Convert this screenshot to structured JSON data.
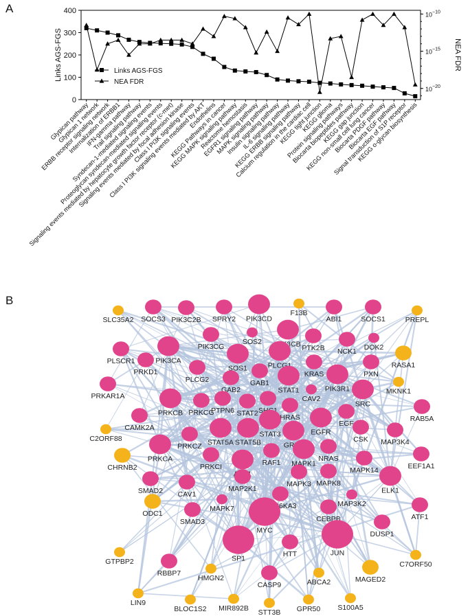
{
  "panel_a_label": "A",
  "panel_b_label": "B",
  "chart_data": [
    {
      "type": "line",
      "x": [
        "Glypican pathway",
        "Glypican 1 network",
        "ERBB receptor signaling network",
        "Internalization of ERBB1",
        "IFN-gamma pathway",
        "Trail signaling pathway",
        "Syndecan-1-mediated signaling events",
        "Proteoglycan syndecan-mediated signaling events",
        "Signaling events mediated by hepatocyte growth factor receptor (c-met)",
        "Signaling events mediated by focal adhesion kinase",
        "Class I PI3K signaling events",
        "Class I PI3K signaling events mediated by AKT",
        "Endothelins",
        "KEGG Pathways in cancer",
        "KEGG MAPK signaling pathway",
        "Reactome hemostasis",
        "EGFR1 signaling pathway",
        "MAPK signaling pathway",
        "Insulin signaling pathway",
        "IL-6 signaling pathway",
        "KEGG ERBB signaling pathway",
        "Calcium regulation in the cardiac cell",
        "KEGG tight junction",
        "KEGG glioma",
        "Protein signaling pathways",
        "Biocarta biopeptides pathway",
        "KEGG gap junction",
        "KEGG non-small cell lung cancer",
        "Biocarta PDGF pathway",
        "Biocarta EGF pathway",
        "Signal transduction of S1P receptor",
        "KEGG o-glycan biosynthesis"
      ],
      "series": [
        {
          "name": "Links AGS-FGS",
          "axis": "left",
          "marker": "square",
          "values": [
            320,
            310,
            300,
            288,
            268,
            258,
            254,
            252,
            250,
            247,
            236,
            205,
            183,
            146,
            130,
            126,
            123,
            110,
            90,
            85,
            82,
            80,
            75,
            72,
            68,
            65,
            62,
            58,
            55,
            52,
            28,
            15
          ]
        },
        {
          "name": "NEA FDR",
          "axis": "right",
          "marker": "triangle",
          "values": [
            -11.5,
            -17.5,
            -14.0,
            -13.5,
            -15.5,
            -14.0,
            -14.0,
            -13.5,
            -13.5,
            -13.5,
            -14.0,
            -12.0,
            -13.0,
            -10.3,
            -10.6,
            -11.8,
            -15.2,
            -12.4,
            -15.0,
            -10.5,
            -11.4,
            -10.0,
            -20.5,
            -13.3,
            -13.0,
            -18.5,
            -10.8,
            -10.0,
            -11.5,
            -10.0,
            -11.8,
            -19.5
          ]
        }
      ],
      "ylabel": "Links AGS-FGS",
      "ylabel_right": "NEA FDR",
      "ylim": [
        0,
        400
      ],
      "yticks": [
        "0",
        "100",
        "200",
        "300",
        "400"
      ],
      "ylim_right_log10": [
        -21.5,
        -9.5
      ],
      "yticks_right": [
        {
          "exp": -10,
          "label": "10",
          "sup": "−10"
        },
        {
          "exp": -15,
          "label": "10",
          "sup": "−15"
        },
        {
          "exp": -20,
          "label": "10",
          "sup": "−20"
        }
      ],
      "legend_position": "left-middle",
      "grid": false
    },
    {
      "type": "network",
      "edge_color": "#b4c4de",
      "colors": {
        "pink": "#e2448c",
        "orange": "#f5b31b",
        "label": "#222222"
      },
      "nodes": [
        {
          "id": "SLC35A2",
          "color": "orange",
          "size": "small"
        },
        {
          "id": "SOCS3",
          "color": "pink",
          "size": "medium"
        },
        {
          "id": "PIK3C2B",
          "color": "pink",
          "size": "medium"
        },
        {
          "id": "SPRY2",
          "color": "pink",
          "size": "medium"
        },
        {
          "id": "PIK3CD",
          "color": "pink",
          "size": "large"
        },
        {
          "id": "F13B",
          "color": "orange",
          "size": "small"
        },
        {
          "id": "ABI1",
          "color": "pink",
          "size": "medium"
        },
        {
          "id": "SOCS1",
          "color": "pink",
          "size": "medium"
        },
        {
          "id": "PREPL",
          "color": "orange",
          "size": "small"
        },
        {
          "id": "PIK3CG",
          "color": "pink",
          "size": "medium"
        },
        {
          "id": "SOS2",
          "color": "pink",
          "size": "small"
        },
        {
          "id": "PIK3CB",
          "color": "pink",
          "size": "large"
        },
        {
          "id": "PLSCR1",
          "color": "pink",
          "size": "medium"
        },
        {
          "id": "PIK3CA",
          "color": "pink",
          "size": "large"
        },
        {
          "id": "SOS1",
          "color": "pink",
          "size": "large"
        },
        {
          "id": "PTK2B",
          "color": "pink",
          "size": "medium"
        },
        {
          "id": "NCK1",
          "color": "pink",
          "size": "medium"
        },
        {
          "id": "DOK2",
          "color": "pink",
          "size": "small"
        },
        {
          "id": "RASA1",
          "color": "orange",
          "size": "medium"
        },
        {
          "id": "PRKD1",
          "color": "pink",
          "size": "medium"
        },
        {
          "id": "PLCG2",
          "color": "pink",
          "size": "medium"
        },
        {
          "id": "GAB1",
          "color": "pink",
          "size": "medium"
        },
        {
          "id": "PLCG1",
          "color": "pink",
          "size": "large"
        },
        {
          "id": "KRAS",
          "color": "pink",
          "size": "medium"
        },
        {
          "id": "PXN",
          "color": "pink",
          "size": "medium"
        },
        {
          "id": "MKNK1",
          "color": "orange",
          "size": "small"
        },
        {
          "id": "PRKAR1A",
          "color": "pink",
          "size": "medium"
        },
        {
          "id": "GAB2",
          "color": "pink",
          "size": "medium"
        },
        {
          "id": "STAT1",
          "color": "pink",
          "size": "large"
        },
        {
          "id": "PIK3R1",
          "color": "pink",
          "size": "large"
        },
        {
          "id": "CAV2",
          "color": "pink",
          "size": "small"
        },
        {
          "id": "SRC",
          "color": "pink",
          "size": "large"
        },
        {
          "id": "PRKCB",
          "color": "pink",
          "size": "large"
        },
        {
          "id": "PRKCG",
          "color": "pink",
          "size": "medium"
        },
        {
          "id": "PTPN6",
          "color": "pink",
          "size": "medium"
        },
        {
          "id": "STAT2",
          "color": "pink",
          "size": "medium"
        },
        {
          "id": "SHC1",
          "color": "pink",
          "size": "medium"
        },
        {
          "id": "HRAS",
          "color": "pink",
          "size": "medium"
        },
        {
          "id": "EGF",
          "color": "pink",
          "size": "medium"
        },
        {
          "id": "RAB5A",
          "color": "pink",
          "size": "medium"
        },
        {
          "id": "CAMK2A",
          "color": "pink",
          "size": "medium"
        },
        {
          "id": "C2ORF88",
          "color": "orange",
          "size": "small"
        },
        {
          "id": "PRKCZ",
          "color": "pink",
          "size": "medium"
        },
        {
          "id": "STAT5A",
          "color": "pink",
          "size": "large"
        },
        {
          "id": "STAT5B",
          "color": "pink",
          "size": "large"
        },
        {
          "id": "STAT3",
          "color": "pink",
          "size": "large"
        },
        {
          "id": "GRB2",
          "color": "pink",
          "size": "large"
        },
        {
          "id": "EGFR",
          "color": "pink",
          "size": "large"
        },
        {
          "id": "CSK",
          "color": "pink",
          "size": "medium"
        },
        {
          "id": "MAP3K4",
          "color": "pink",
          "size": "medium"
        },
        {
          "id": "CHRNB2",
          "color": "orange",
          "size": "medium"
        },
        {
          "id": "PRKCA",
          "color": "pink",
          "size": "large"
        },
        {
          "id": "PRKCI",
          "color": "pink",
          "size": "medium"
        },
        {
          "id": "AKT1",
          "color": "pink",
          "size": "large"
        },
        {
          "id": "RAF1",
          "color": "pink",
          "size": "medium"
        },
        {
          "id": "MAPK1",
          "color": "pink",
          "size": "large"
        },
        {
          "id": "NRAS",
          "color": "pink",
          "size": "medium"
        },
        {
          "id": "MAPK14",
          "color": "pink",
          "size": "medium"
        },
        {
          "id": "EEF1A1",
          "color": "pink",
          "size": "medium"
        },
        {
          "id": "SMAD2",
          "color": "pink",
          "size": "medium"
        },
        {
          "id": "CAV1",
          "color": "pink",
          "size": "medium"
        },
        {
          "id": "MAP2K1",
          "color": "pink",
          "size": "medium"
        },
        {
          "id": "MAPK3",
          "color": "pink",
          "size": "medium"
        },
        {
          "id": "MAPK8",
          "color": "pink",
          "size": "medium"
        },
        {
          "id": "ELK1",
          "color": "pink",
          "size": "large"
        },
        {
          "id": "RPS6KA3",
          "color": "pink",
          "size": "medium"
        },
        {
          "id": "MAPK7",
          "color": "pink",
          "size": "small"
        },
        {
          "id": "MAP3K2",
          "color": "pink",
          "size": "small"
        },
        {
          "id": "ATF1",
          "color": "pink",
          "size": "medium"
        },
        {
          "id": "ODC1",
          "color": "orange",
          "size": "medium"
        },
        {
          "id": "SMAD3",
          "color": "pink",
          "size": "medium"
        },
        {
          "id": "MYC",
          "color": "pink",
          "size": "xlarge"
        },
        {
          "id": "CEBPB",
          "color": "pink",
          "size": "medium"
        },
        {
          "id": "DUSP1",
          "color": "pink",
          "size": "medium"
        },
        {
          "id": "SP1",
          "color": "pink",
          "size": "xlarge"
        },
        {
          "id": "HTT",
          "color": "pink",
          "size": "medium"
        },
        {
          "id": "JUN",
          "color": "pink",
          "size": "xlarge"
        },
        {
          "id": "GTPBP2",
          "color": "orange",
          "size": "small"
        },
        {
          "id": "RBBP7",
          "color": "pink",
          "size": "medium"
        },
        {
          "id": "HMGN2",
          "color": "orange",
          "size": "small"
        },
        {
          "id": "CASP9",
          "color": "pink",
          "size": "medium"
        },
        {
          "id": "ABCA2",
          "color": "orange",
          "size": "small"
        },
        {
          "id": "MAGED2",
          "color": "orange",
          "size": "medium"
        },
        {
          "id": "C7ORF50",
          "color": "orange",
          "size": "small"
        },
        {
          "id": "LIN9",
          "color": "orange",
          "size": "small"
        },
        {
          "id": "BLOC1S2",
          "color": "orange",
          "size": "small"
        },
        {
          "id": "MIR892B",
          "color": "orange",
          "size": "small"
        },
        {
          "id": "STT3B",
          "color": "orange",
          "size": "small"
        },
        {
          "id": "GPR50",
          "color": "orange",
          "size": "small"
        },
        {
          "id": "S100A5",
          "color": "orange",
          "size": "small"
        }
      ]
    }
  ]
}
